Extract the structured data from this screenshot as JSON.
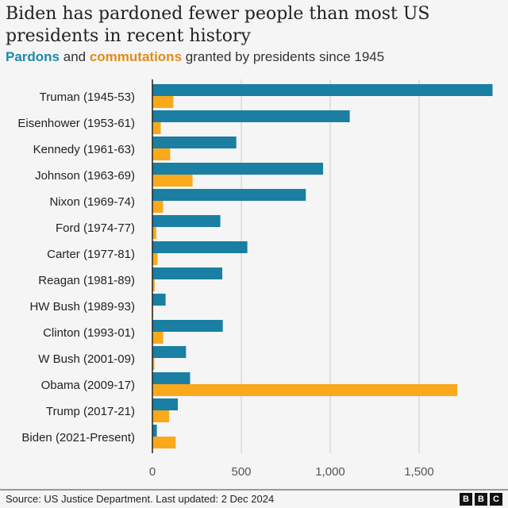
{
  "chart_data": {
    "type": "bar",
    "orientation": "horizontal",
    "title": "Biden has pardoned fewer people than most US presidents in recent history",
    "subtitle_parts": {
      "pardons": "Pardons",
      "and": " and ",
      "commutations": "commutations",
      "rest": " granted by presidents since 1945"
    },
    "categories": [
      "Truman (1945-53)",
      "Eisenhower (1953-61)",
      "Kennedy (1961-63)",
      "Johnson (1963-69)",
      "Nixon (1969-74)",
      "Ford (1974-77)",
      "Carter (1977-81)",
      "Reagan (1981-89)",
      "HW Bush (1989-93)",
      "Clinton (1993-01)",
      "W Bush (2001-09)",
      "Obama (2009-17)",
      "Trump (2017-21)",
      "Biden (2021-Present)"
    ],
    "series": [
      {
        "name": "Pardons",
        "color": "#1a7fa3",
        "values": [
          1913,
          1110,
          472,
          960,
          863,
          382,
          534,
          393,
          74,
          396,
          189,
          212,
          143,
          25
        ]
      },
      {
        "name": "Commutations",
        "color": "#f9a91b",
        "values": [
          118,
          47,
          100,
          226,
          60,
          22,
          29,
          13,
          3,
          61,
          11,
          1715,
          94,
          131
        ]
      }
    ],
    "xlim": [
      0,
      1920
    ],
    "xticks": [
      0,
      500,
      1000,
      1500
    ],
    "xtick_labels": [
      "0",
      "500",
      "1,000",
      "1,500"
    ],
    "grid": true
  },
  "footer": {
    "source": "Source: US Justice Department. Last updated: 2 Dec 2024",
    "logo": [
      "B",
      "B",
      "C"
    ]
  }
}
